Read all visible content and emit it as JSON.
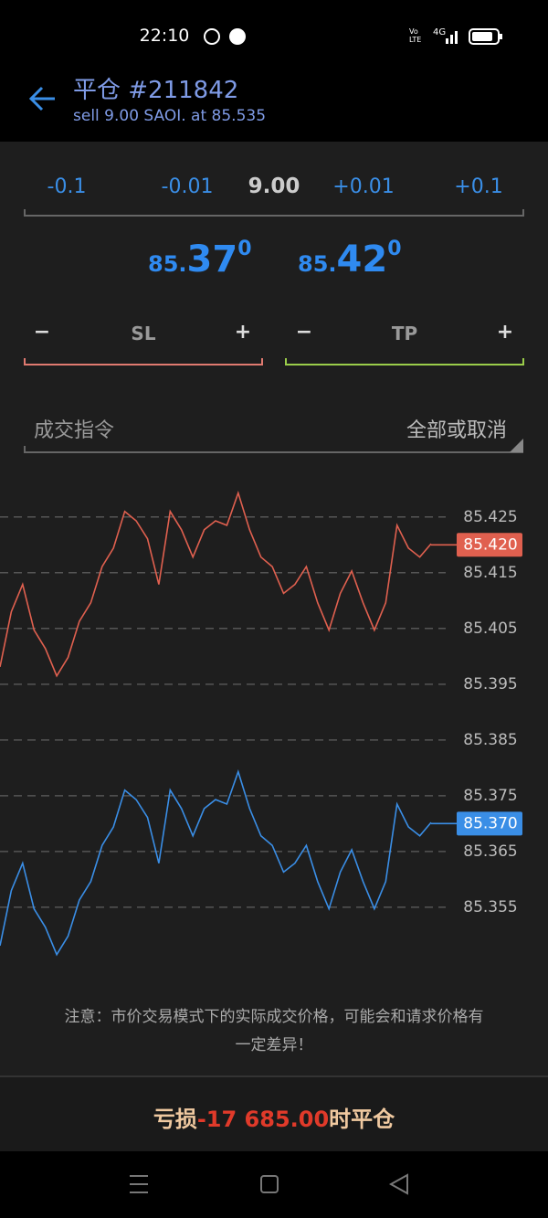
{
  "status": {
    "time": "22:10",
    "indicators": [
      "Vo",
      "LTE",
      "4G"
    ]
  },
  "header": {
    "title": "平仓 #211842",
    "subtitle": "sell 9.00 SAOI. at 85.535"
  },
  "volume": {
    "steps": [
      "-0.1",
      "-0.01",
      "9.00",
      "+0.01",
      "+0.1"
    ]
  },
  "quotes": [
    {
      "prefix": "85.",
      "main": "37",
      "sup": "0"
    },
    {
      "prefix": "85.",
      "main": "42",
      "sup": "0"
    }
  ],
  "stops": [
    {
      "minus": "−",
      "label": "SL",
      "plus": "+"
    },
    {
      "minus": "−",
      "label": "TP",
      "plus": "+"
    }
  ],
  "order": {
    "label": "成交指令",
    "value": "全部或取消"
  },
  "chart_data": {
    "type": "line",
    "ylim": [
      85.344,
      85.4325
    ],
    "yticks": [
      85.425,
      85.415,
      85.405,
      85.395,
      85.385,
      85.375,
      85.365,
      85.355
    ],
    "grid": true,
    "series": [
      {
        "color": "#e0604f",
        "current": {
          "value": 85.42,
          "label": "85.420"
        },
        "values": [
          85.3981,
          85.408,
          85.4129,
          85.4047,
          85.4014,
          85.3965,
          85.3998,
          85.4063,
          85.4096,
          85.4161,
          85.4194,
          85.426,
          85.4243,
          85.4211,
          85.4129,
          85.426,
          85.4227,
          85.4178,
          85.4227,
          85.4243,
          85.4235,
          85.4293,
          85.4227,
          85.4178,
          85.4161,
          85.4113,
          85.4129,
          85.4161,
          85.4096,
          85.4047,
          85.4113,
          85.4153,
          85.4096,
          85.4047,
          85.4096,
          85.4235,
          85.4194,
          85.4178,
          85.4202
        ]
      },
      {
        "color": "#3a8ee6",
        "current": {
          "value": 85.37,
          "label": "85.370"
        },
        "values": [
          85.3481,
          85.358,
          85.3629,
          85.3547,
          85.3514,
          85.3465,
          85.3498,
          85.3563,
          85.3596,
          85.3661,
          85.3694,
          85.376,
          85.3743,
          85.3711,
          85.3629,
          85.376,
          85.3727,
          85.3678,
          85.3727,
          85.3743,
          85.3735,
          85.3793,
          85.3727,
          85.3678,
          85.3661,
          85.3613,
          85.3629,
          85.3661,
          85.3596,
          85.3547,
          85.3613,
          85.3653,
          85.3596,
          85.3547,
          85.3596,
          85.3735,
          85.3694,
          85.3678,
          85.3702
        ]
      }
    ]
  },
  "note": [
    "注意：市价交易模式下的实际成交价格，可能会和请求价格有",
    "一定差异！"
  ],
  "action": {
    "prefix": "亏损",
    "amount": "-17 685.00",
    "suffix": "时平仓"
  }
}
